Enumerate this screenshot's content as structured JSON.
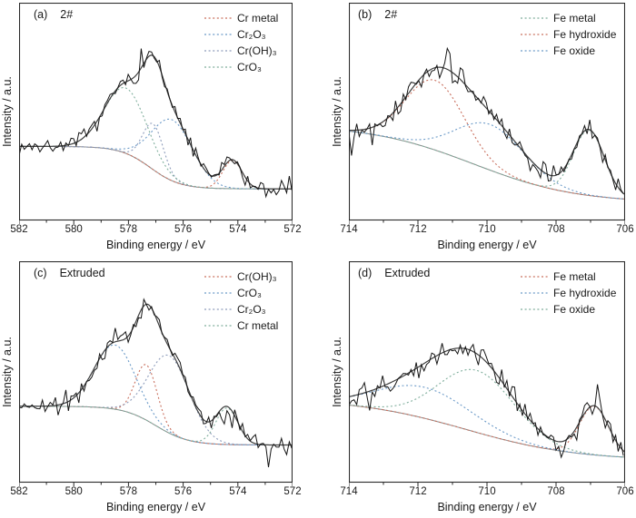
{
  "figure": {
    "type": "XPS spectra, four fitted panels",
    "xlabel": "Binding energy / eV",
    "ylabel": "Intensity / a.u."
  },
  "chart_data": [
    {
      "id": "a",
      "type": "line",
      "panel_label": "(a)",
      "sample_label": "2#",
      "xlabel": "Binding energy / eV",
      "ylabel": "Intensity / a.u.",
      "x_axis": {
        "min": 572,
        "max": 582,
        "unit": "eV",
        "reversed": true,
        "major_ticks": [
          582,
          580,
          578,
          576,
          574,
          572
        ],
        "minor_ticks": [
          581,
          579,
          577,
          575,
          573
        ]
      },
      "y_axis": {
        "label": "Intensity / a.u.",
        "range": [
          0,
          1
        ],
        "ticks": []
      },
      "baseline": {
        "left_level": 0.34,
        "right_level": 0.145,
        "mid": 577.2,
        "scale": 0.55,
        "color": "#8a8a8a"
      },
      "envelope": {
        "color": "#3f3f3f"
      },
      "raw": {
        "color": "#151515",
        "noise_amp": 0.045,
        "noise_seed": 7,
        "step_ev": 0.095
      },
      "components": [
        {
          "name": "Cr metal",
          "color": "#c9705e",
          "center_ev": 574.2,
          "amplitude": 0.13,
          "sigma_ev": 0.35
        },
        {
          "name": "Cr₂O₃",
          "color": "#6b9ac8",
          "center_ev": 576.4,
          "amplitude": 0.28,
          "sigma_ev": 0.75
        },
        {
          "name": "Cr(OH)₃",
          "color": "#8e9cbb",
          "center_ev": 577.1,
          "amplitude": 0.21,
          "sigma_ev": 0.38
        },
        {
          "name": "CrO₃",
          "color": "#7fae9c",
          "center_ev": 578.1,
          "amplitude": 0.3,
          "sigma_ev": 0.78
        }
      ]
    },
    {
      "id": "b",
      "type": "line",
      "panel_label": "(b)",
      "sample_label": "2#",
      "xlabel": "Binding energy / eV",
      "ylabel": "Intensity / a.u.",
      "x_axis": {
        "min": 706,
        "max": 714,
        "unit": "eV",
        "reversed": true,
        "major_ticks": [
          714,
          712,
          710,
          708,
          706
        ],
        "minor_ticks": [
          713,
          711,
          709,
          707
        ]
      },
      "y_axis": {
        "label": "Intensity / a.u.",
        "range": [
          0,
          1
        ],
        "ticks": []
      },
      "baseline": {
        "left_level": 0.44,
        "right_level": 0.08,
        "mid": 710.4,
        "scale": 1.5,
        "color": "#8a8a8a"
      },
      "envelope": {
        "color": "#3f3f3f"
      },
      "raw": {
        "color": "#151515",
        "noise_amp": 0.055,
        "noise_seed": 13,
        "step_ev": 0.075
      },
      "components": [
        {
          "name": "Fe metal",
          "color": "#7fae9c",
          "center_ev": 707.05,
          "amplitude": 0.3,
          "sigma_ev": 0.45
        },
        {
          "name": "Fe hydroxide",
          "color": "#c9705e",
          "center_ev": 711.5,
          "amplitude": 0.32,
          "sigma_ev": 0.85
        },
        {
          "name": "Fe oxide",
          "color": "#6b9ac8",
          "center_ev": 709.9,
          "amplitude": 0.21,
          "sigma_ev": 1.0
        }
      ]
    },
    {
      "id": "c",
      "type": "line",
      "panel_label": "(c)",
      "sample_label": "Extruded",
      "xlabel": "Binding energy / eV",
      "ylabel": "Intensity / a.u.",
      "x_axis": {
        "min": 572,
        "max": 582,
        "unit": "eV",
        "reversed": true,
        "major_ticks": [
          582,
          580,
          578,
          576,
          574,
          572
        ],
        "minor_ticks": [
          581,
          579,
          577,
          575,
          573
        ]
      },
      "y_axis": {
        "label": "Intensity / a.u.",
        "range": [
          0,
          1
        ],
        "ticks": []
      },
      "baseline": {
        "left_level": 0.345,
        "right_level": 0.17,
        "mid": 577.0,
        "scale": 0.6,
        "color": "#8a8a8a"
      },
      "envelope": {
        "color": "#3f3f3f"
      },
      "raw": {
        "color": "#151515",
        "noise_amp": 0.05,
        "noise_seed": 21,
        "step_ev": 0.095
      },
      "components": [
        {
          "name": "Cr(OH)₃",
          "color": "#c9705e",
          "center_ev": 577.35,
          "amplitude": 0.25,
          "sigma_ev": 0.4
        },
        {
          "name": "CrO₃",
          "color": "#6b9ac8",
          "center_ev": 578.5,
          "amplitude": 0.29,
          "sigma_ev": 0.75
        },
        {
          "name": "Cr₂O₃",
          "color": "#8e9cbb",
          "center_ev": 576.5,
          "amplitude": 0.35,
          "sigma_ev": 0.75
        },
        {
          "name": "Cr metal",
          "color": "#7fae9c",
          "center_ev": 574.4,
          "amplitude": 0.165,
          "sigma_ev": 0.4
        }
      ]
    },
    {
      "id": "d",
      "type": "line",
      "panel_label": "(d)",
      "sample_label": "Extruded",
      "xlabel": "Binding energy / eV",
      "ylabel": "Intensity / a.u.",
      "x_axis": {
        "min": 706,
        "max": 714,
        "unit": "eV",
        "reversed": true,
        "major_ticks": [
          714,
          712,
          710,
          708,
          706
        ],
        "minor_ticks": [
          713,
          711,
          709,
          707
        ]
      },
      "y_axis": {
        "label": "Intensity / a.u.",
        "range": [
          0,
          1
        ],
        "ticks": []
      },
      "baseline": {
        "left_level": 0.38,
        "right_level": 0.1,
        "mid": 710.6,
        "scale": 1.6,
        "color": "#8a8a8a"
      },
      "envelope": {
        "color": "#3f3f3f"
      },
      "raw": {
        "color": "#151515",
        "noise_amp": 0.06,
        "noise_seed": 29,
        "step_ev": 0.075
      },
      "components": [
        {
          "name": "Fe metal",
          "color": "#c9705e",
          "center_ev": 706.9,
          "amplitude": 0.22,
          "sigma_ev": 0.42
        },
        {
          "name": "Fe hydroxide",
          "color": "#6b9ac8",
          "center_ev": 711.8,
          "amplitude": 0.14,
          "sigma_ev": 1.35
        },
        {
          "name": "Fe oxide",
          "color": "#7fae9c",
          "center_ev": 710.3,
          "amplitude": 0.28,
          "sigma_ev": 1.1
        }
      ]
    }
  ]
}
